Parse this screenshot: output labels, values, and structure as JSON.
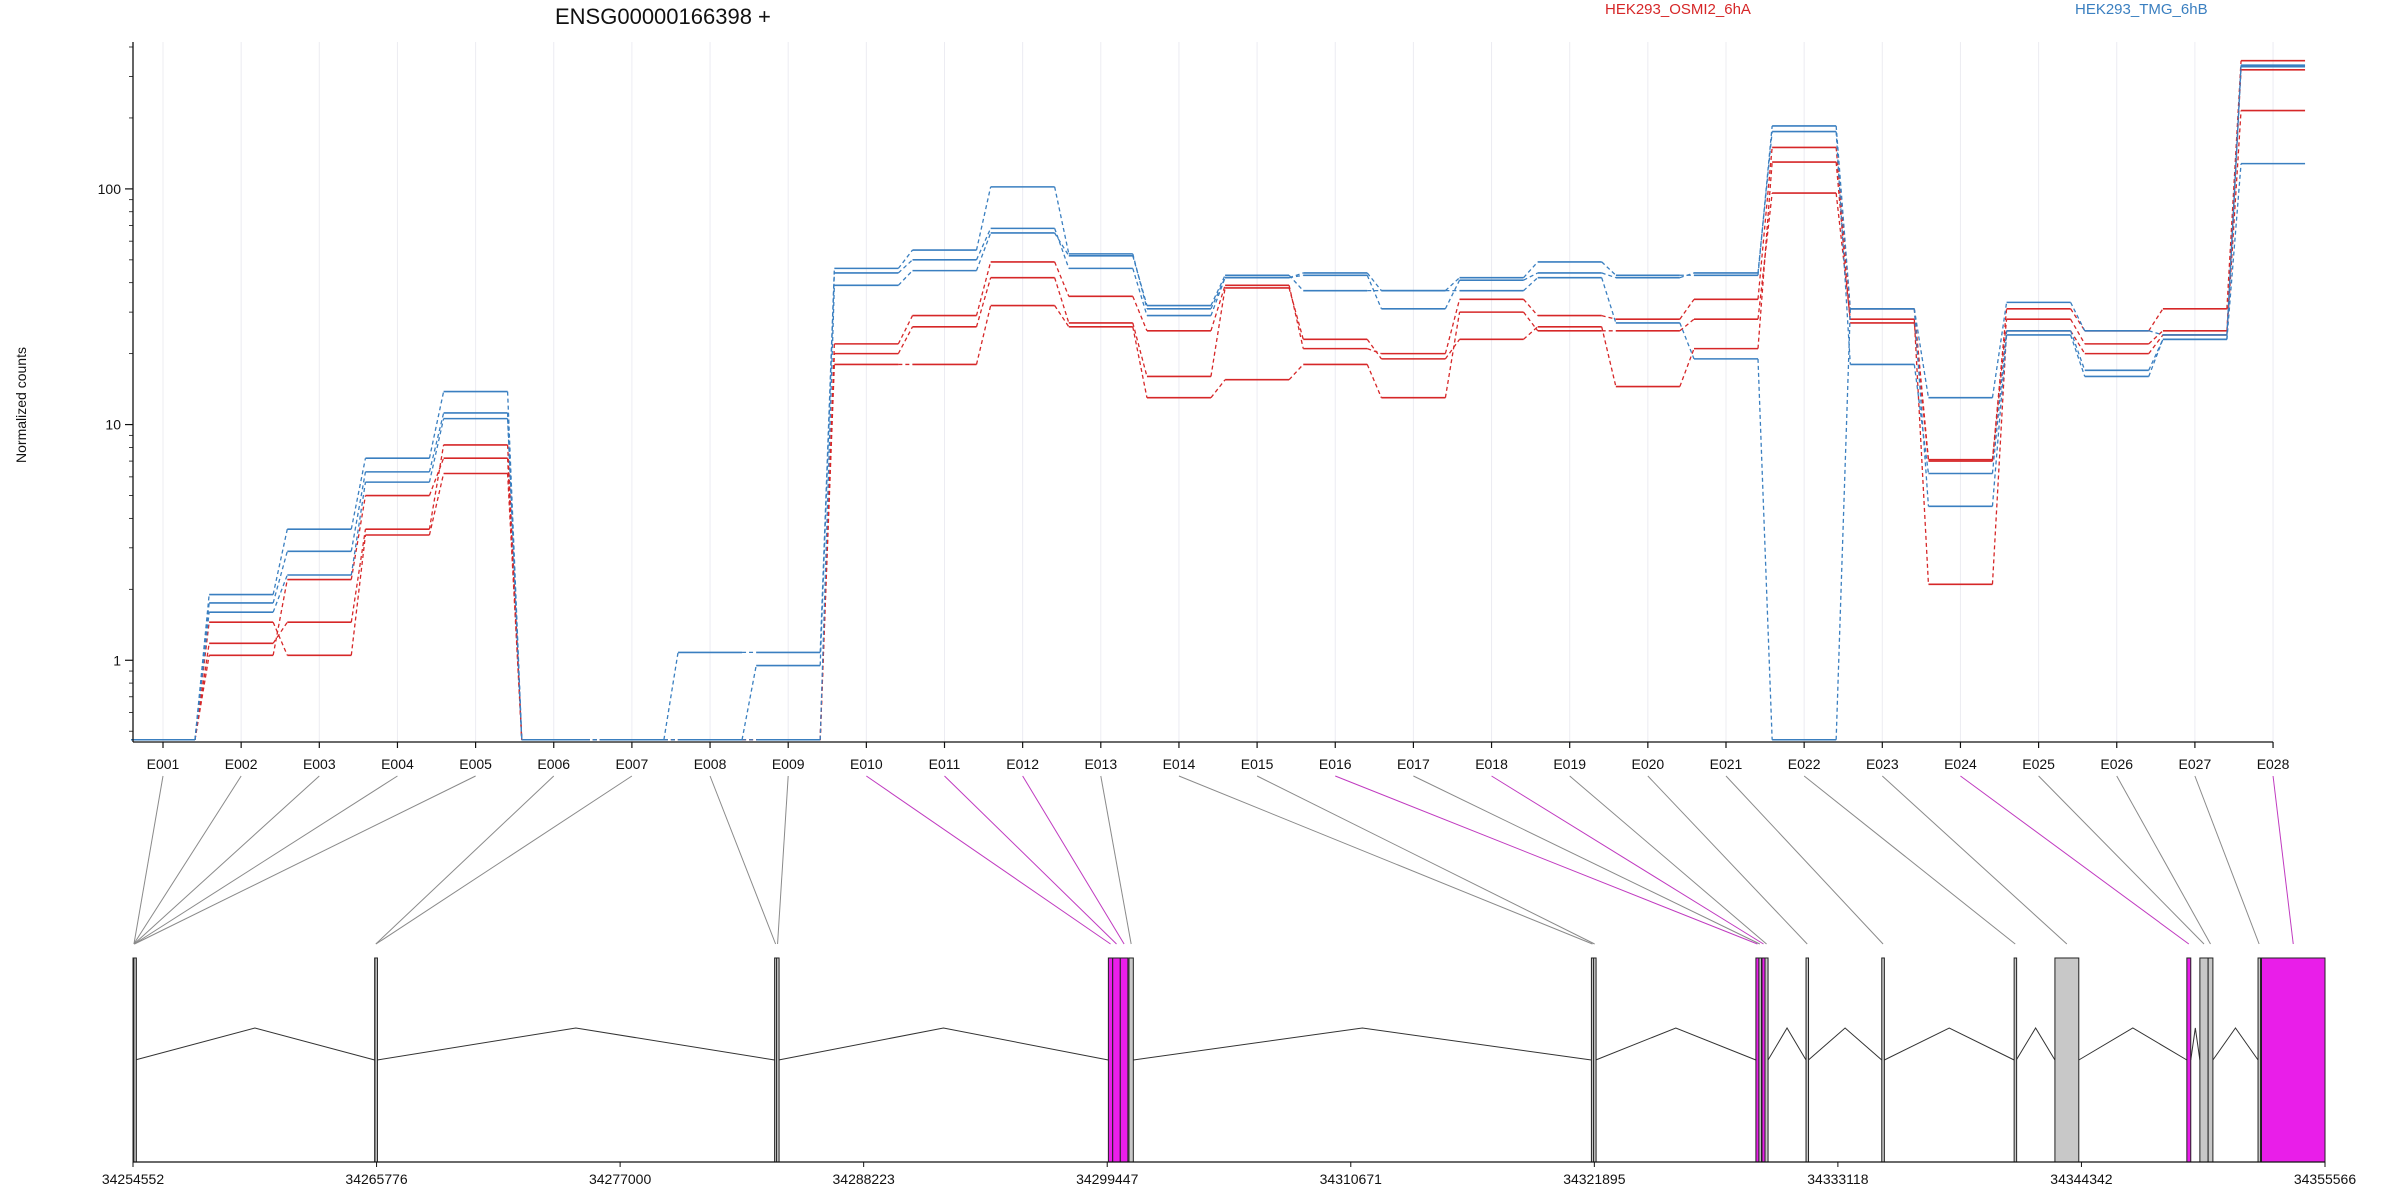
{
  "chart_data": {
    "type": "line",
    "title": "ENSG00000166398 +",
    "ylabel": "Normalized counts",
    "xlabel": "",
    "y_scale": "log",
    "ylim": [
      0.45,
      420
    ],
    "y_ticks": [
      {
        "value": 1,
        "label": "1"
      },
      {
        "value": 10,
        "label": "10"
      },
      {
        "value": 100,
        "label": "100"
      }
    ],
    "grid": "vertical",
    "legend_placement": "top",
    "categories": [
      "E001",
      "E002",
      "E003",
      "E004",
      "E005",
      "E006",
      "E007",
      "E008",
      "E009",
      "E010",
      "E011",
      "E012",
      "E013",
      "E014",
      "E015",
      "E016",
      "E017",
      "E018",
      "E019",
      "E020",
      "E021",
      "E022",
      "E023",
      "E024",
      "E025",
      "E026",
      "E027",
      "E028"
    ],
    "legend": [
      {
        "name": "HEK293_OSMI2_6hA",
        "color": "#d62728"
      },
      {
        "name": "HEK293_TMG_6hB",
        "color": "#3a7fc0"
      }
    ],
    "series": [
      {
        "group": "HEK293_OSMI2_6hA",
        "color": "#d62728",
        "values": [
          0.46,
          1.18,
          1.45,
          3.6,
          8.2,
          0.46,
          0.46,
          0.46,
          0.46,
          22,
          29,
          49,
          35,
          25,
          39,
          21,
          20,
          34,
          29,
          28,
          34,
          150,
          31,
          7.1,
          31,
          25,
          31,
          350
        ]
      },
      {
        "group": "HEK293_OSMI2_6hA",
        "color": "#d62728",
        "values": [
          0.46,
          1.05,
          2.2,
          5.0,
          7.2,
          0.46,
          0.46,
          0.46,
          0.46,
          20,
          26,
          42,
          27,
          16,
          38,
          23,
          19,
          23,
          26,
          14.5,
          21,
          130,
          27,
          7.0,
          28,
          22,
          25,
          320
        ]
      },
      {
        "group": "HEK293_OSMI2_6hA",
        "color": "#d62728",
        "values": [
          0.46,
          1.45,
          1.05,
          3.4,
          6.2,
          0.46,
          0.46,
          0.46,
          0.46,
          18,
          18,
          32,
          26,
          13,
          15.5,
          18,
          13,
          30,
          25,
          25,
          28,
          96,
          28,
          2.1,
          25,
          20,
          24,
          215
        ]
      },
      {
        "group": "HEK293_TMG_6hB",
        "color": "#3a7fc0",
        "values": [
          0.46,
          1.9,
          3.6,
          7.2,
          13.8,
          0.46,
          0.46,
          1.08,
          1.08,
          46,
          55,
          102,
          53,
          31,
          42,
          44,
          37,
          42,
          49,
          43,
          43,
          185,
          31,
          13,
          33,
          25,
          24,
          335
        ]
      },
      {
        "group": "HEK293_TMG_6hB",
        "color": "#3a7fc0",
        "values": [
          0.46,
          1.75,
          2.9,
          6.3,
          11.2,
          0.46,
          0.46,
          0.46,
          0.95,
          44,
          50,
          68,
          46,
          29,
          42,
          43,
          31,
          41,
          44,
          42,
          44,
          175,
          18,
          6.2,
          25,
          17,
          23,
          330
        ]
      },
      {
        "group": "HEK293_TMG_6hB",
        "color": "#3a7fc0",
        "values": [
          0.46,
          1.6,
          2.3,
          5.7,
          10.6,
          0.46,
          0.46,
          0.46,
          0.46,
          39,
          45,
          65,
          52,
          32,
          43,
          37,
          37,
          37,
          42,
          27,
          19,
          0.46,
          31,
          4.5,
          24,
          16,
          23,
          128
        ]
      }
    ],
    "gene_model": {
      "coordinate_labels": [
        "34254552",
        "34265776",
        "34277000",
        "34288223",
        "34299447",
        "34310671",
        "34321895",
        "34333118",
        "34344342",
        "34355566"
      ],
      "coordinate_ticks": [
        34254552,
        34265776,
        34277000,
        34288223,
        34299447,
        34310671,
        34321895,
        34333118,
        34344342,
        34355566
      ],
      "range": [
        34254552,
        34355566
      ],
      "highlight_color": "#e91ee9",
      "exon_color": "#c8c8c8",
      "exons": [
        {
          "id": "E001",
          "start": 34254552,
          "end": 34254640,
          "highlight": false
        },
        {
          "id": "E002",
          "start": 34254560,
          "end": 34254620,
          "highlight": false
        },
        {
          "id": "E003",
          "start": 34254570,
          "end": 34254630,
          "highlight": false
        },
        {
          "id": "E004",
          "start": 34254580,
          "end": 34254640,
          "highlight": false
        },
        {
          "id": "E005",
          "start": 34254590,
          "end": 34254650,
          "highlight": false
        },
        {
          "id": "E006",
          "start": 34265690,
          "end": 34265790,
          "highlight": false
        },
        {
          "id": "E007",
          "start": 34265700,
          "end": 34265800,
          "highlight": false
        },
        {
          "id": "E008",
          "start": 34284120,
          "end": 34284210,
          "highlight": false
        },
        {
          "id": "E009",
          "start": 34284210,
          "end": 34284300,
          "highlight": false
        },
        {
          "id": "E010",
          "start": 34299500,
          "end": 34299700,
          "highlight": true
        },
        {
          "id": "E011",
          "start": 34299700,
          "end": 34300050,
          "highlight": true
        },
        {
          "id": "E012",
          "start": 34300050,
          "end": 34300400,
          "highlight": true
        },
        {
          "id": "E013",
          "start": 34300450,
          "end": 34300650,
          "highlight": false
        },
        {
          "id": "E014",
          "start": 34321760,
          "end": 34321860,
          "highlight": false
        },
        {
          "id": "E015",
          "start": 34321860,
          "end": 34321960,
          "highlight": false
        },
        {
          "id": "E016",
          "start": 34329340,
          "end": 34329480,
          "highlight": true
        },
        {
          "id": "E017",
          "start": 34329480,
          "end": 34329560,
          "highlight": false
        },
        {
          "id": "E018",
          "start": 34329620,
          "end": 34329760,
          "highlight": true
        },
        {
          "id": "E019",
          "start": 34329760,
          "end": 34329900,
          "highlight": false
        },
        {
          "id": "E020",
          "start": 34331650,
          "end": 34331760,
          "highlight": false
        },
        {
          "id": "E021",
          "start": 34335140,
          "end": 34335260,
          "highlight": false
        },
        {
          "id": "E022",
          "start": 34341240,
          "end": 34341340,
          "highlight": false
        },
        {
          "id": "E023",
          "start": 34343120,
          "end": 34344220,
          "highlight": false
        },
        {
          "id": "E024",
          "start": 34349200,
          "end": 34349380,
          "highlight": true
        },
        {
          "id": "E025",
          "start": 34349800,
          "end": 34350180,
          "highlight": false
        },
        {
          "id": "E026",
          "start": 34350180,
          "end": 34350400,
          "highlight": false
        },
        {
          "id": "E027",
          "start": 34352480,
          "end": 34352580,
          "highlight": false
        },
        {
          "id": "E028",
          "start": 34352640,
          "end": 34355566,
          "highlight": true
        }
      ]
    }
  }
}
